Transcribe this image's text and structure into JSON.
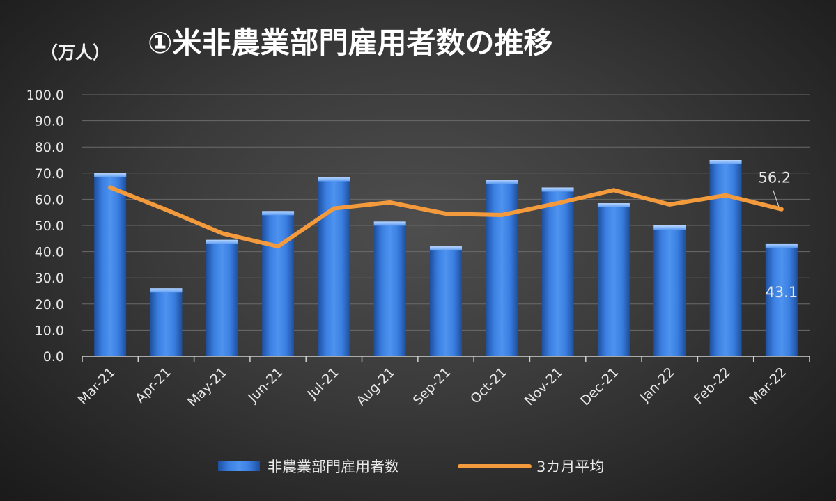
{
  "unit_label": "（万人）",
  "title": "①米非農業部門雇用者数の推移",
  "chart_data": {
    "type": "bar",
    "categories": [
      "Mar-21",
      "Apr-21",
      "May-21",
      "Jun-21",
      "Jul-21",
      "Aug-21",
      "Sep-21",
      "Oct-21",
      "Nov-21",
      "Dec-21",
      "Jan-22",
      "Feb-22",
      "Mar-22"
    ],
    "series": [
      {
        "name": "非農業部門雇用者数",
        "type": "bar",
        "values": [
          70.0,
          26.0,
          44.5,
          55.5,
          68.5,
          51.5,
          42.0,
          67.5,
          64.5,
          58.5,
          50.0,
          75.0,
          43.1
        ],
        "color": "#2f6fd0"
      },
      {
        "name": "3カ月平均",
        "type": "line",
        "values": [
          64.5,
          56.0,
          47.0,
          42.0,
          56.5,
          58.8,
          54.5,
          54.0,
          58.5,
          63.5,
          58.0,
          61.5,
          56.2
        ],
        "color": "#f39a3d"
      }
    ],
    "ylim": [
      0,
      100
    ],
    "yticks": [
      "0.0",
      "10.0",
      "20.0",
      "30.0",
      "40.0",
      "50.0",
      "60.0",
      "70.0",
      "80.0",
      "90.0",
      "100.0"
    ],
    "data_labels": [
      {
        "series": 0,
        "index": 12,
        "text": "43.1"
      },
      {
        "series": 1,
        "index": 12,
        "text": "56.2"
      }
    ],
    "grid": true,
    "legend_position": "bottom"
  }
}
